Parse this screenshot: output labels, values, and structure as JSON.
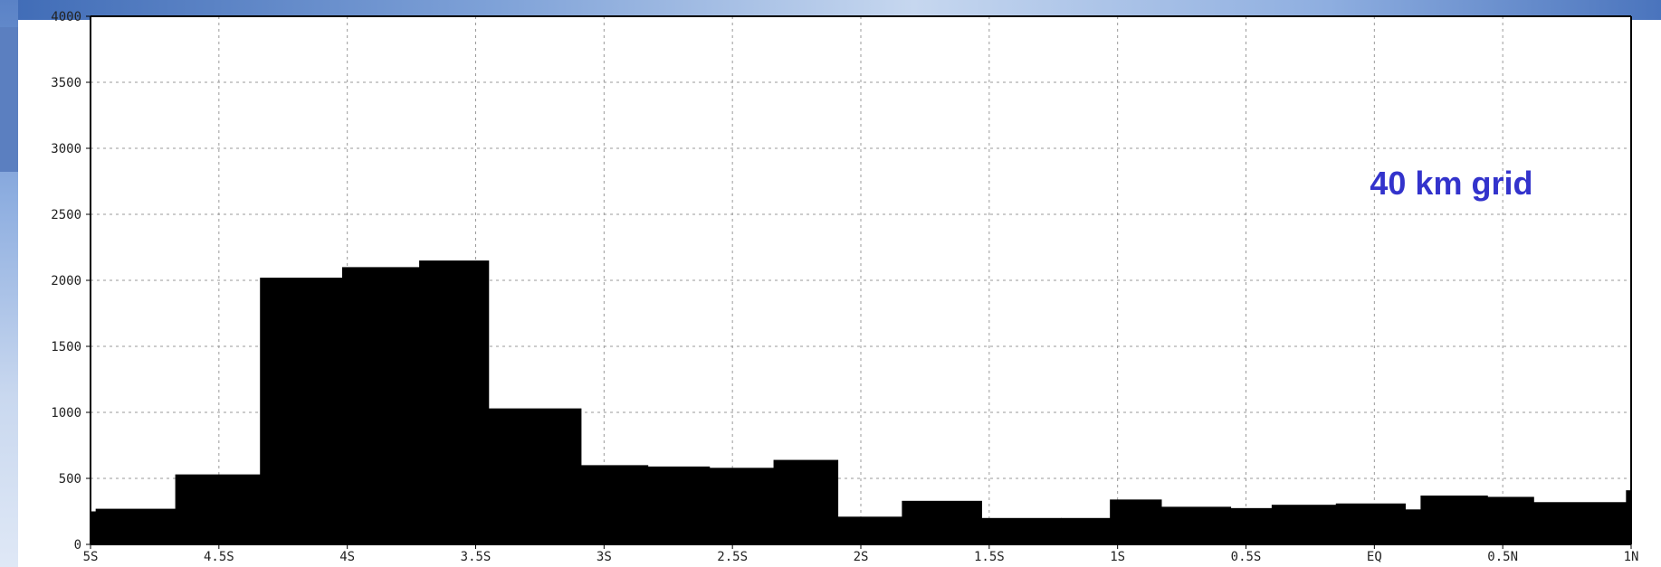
{
  "chart_data": {
    "type": "bar",
    "title": "",
    "xlabel": "",
    "ylabel": "",
    "ylim": [
      0,
      4000
    ],
    "xlim": [
      -5,
      1
    ],
    "x_ticks": [
      {
        "value": -5,
        "label": "5S"
      },
      {
        "value": -4.5,
        "label": "4.5S"
      },
      {
        "value": -4,
        "label": "4S"
      },
      {
        "value": -3.5,
        "label": "3.5S"
      },
      {
        "value": -3,
        "label": "3S"
      },
      {
        "value": -2.5,
        "label": "2.5S"
      },
      {
        "value": -2,
        "label": "2S"
      },
      {
        "value": -1.5,
        "label": "1.5S"
      },
      {
        "value": -1,
        "label": "1S"
      },
      {
        "value": -0.5,
        "label": "0.5S"
      },
      {
        "value": 0,
        "label": "EQ"
      },
      {
        "value": 0.5,
        "label": "0.5N"
      },
      {
        "value": 1,
        "label": "1N"
      }
    ],
    "y_ticks": [
      {
        "value": 0,
        "label": "0"
      },
      {
        "value": 500,
        "label": "500"
      },
      {
        "value": 1000,
        "label": "1000"
      },
      {
        "value": 1500,
        "label": "1500"
      },
      {
        "value": 2000,
        "label": "2000"
      },
      {
        "value": 2500,
        "label": "2500"
      },
      {
        "value": 3000,
        "label": "3000"
      },
      {
        "value": 3500,
        "label": "3500"
      },
      {
        "value": 4000,
        "label": "4000"
      }
    ],
    "grid": true,
    "bars": [
      {
        "x0": -5.0,
        "x1": -4.98,
        "value": 250
      },
      {
        "x0": -4.98,
        "x1": -4.67,
        "value": 270
      },
      {
        "x0": -4.67,
        "x1": -4.34,
        "value": 530
      },
      {
        "x0": -4.34,
        "x1": -4.02,
        "value": 2020
      },
      {
        "x0": -4.02,
        "x1": -3.72,
        "value": 2100
      },
      {
        "x0": -3.72,
        "x1": -3.45,
        "value": 2150
      },
      {
        "x0": -3.45,
        "x1": -3.09,
        "value": 1030
      },
      {
        "x0": -3.09,
        "x1": -2.83,
        "value": 600
      },
      {
        "x0": -2.83,
        "x1": -2.59,
        "value": 590
      },
      {
        "x0": -2.59,
        "x1": -2.34,
        "value": 580
      },
      {
        "x0": -2.34,
        "x1": -2.09,
        "value": 640
      },
      {
        "x0": -2.09,
        "x1": -1.84,
        "value": 210
      },
      {
        "x0": -1.84,
        "x1": -1.53,
        "value": 330
      },
      {
        "x0": -1.53,
        "x1": -1.22,
        "value": 200
      },
      {
        "x0": -1.22,
        "x1": -1.03,
        "value": 200
      },
      {
        "x0": -1.03,
        "x1": -0.83,
        "value": 340
      },
      {
        "x0": -0.83,
        "x1": -0.56,
        "value": 285
      },
      {
        "x0": -0.56,
        "x1": -0.4,
        "value": 275
      },
      {
        "x0": -0.4,
        "x1": -0.15,
        "value": 300
      },
      {
        "x0": -0.15,
        "x1": 0.12,
        "value": 310
      },
      {
        "x0": 0.12,
        "x1": 0.18,
        "value": 265
      },
      {
        "x0": 0.18,
        "x1": 0.44,
        "value": 370
      },
      {
        "x0": 0.44,
        "x1": 0.62,
        "value": 360
      },
      {
        "x0": 0.62,
        "x1": 0.98,
        "value": 320
      },
      {
        "x0": 0.98,
        "x1": 1.0,
        "value": 410
      }
    ],
    "annotations": [
      {
        "text": "40 km grid",
        "x": 0.3,
        "y": 2650,
        "color": "#3333cc"
      }
    ]
  }
}
